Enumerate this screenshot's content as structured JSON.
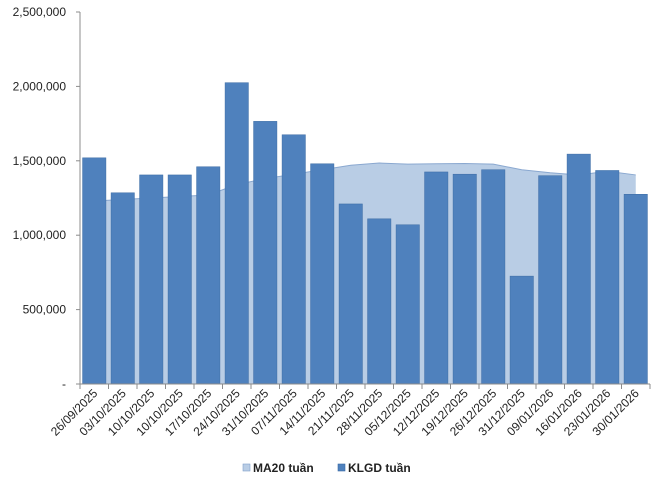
{
  "chart_data": {
    "type": "bar",
    "categories": [
      "26/09/2025",
      "03/10/2025",
      "10/10/2025",
      "10/10/2025",
      "17/10/2025",
      "24/10/2025",
      "31/10/2025",
      "07/11/2025",
      "14/11/2025",
      "21/11/2025",
      "28/11/2025",
      "05/12/2025",
      "12/12/2025",
      "19/12/2025",
      "26/12/2025",
      "31/12/2025",
      "09/01/2026",
      "16/01/2026",
      "23/01/2026",
      "30/01/2026"
    ],
    "series": [
      {
        "name": "KLGD tuần",
        "kind": "bar",
        "color": "#4f81bd",
        "values": [
          1520000,
          1285000,
          1405000,
          1405000,
          1460000,
          2025000,
          1765000,
          1675000,
          1480000,
          1210000,
          1110000,
          1070000,
          1425000,
          1410000,
          1440000,
          725000,
          1400000,
          1545000,
          1435000,
          1275000
        ]
      },
      {
        "name": "MA20 tuần",
        "kind": "area",
        "color": "#b9cde5",
        "values": [
          1230000,
          1240000,
          1250000,
          1260000,
          1270000,
          1340000,
          1380000,
          1410000,
          1440000,
          1470000,
          1485000,
          1478000,
          1480000,
          1482000,
          1478000,
          1440000,
          1420000,
          1405000,
          1430000,
          1405000
        ]
      }
    ],
    "yticks": [
      "-",
      "500,000",
      "1,000,000",
      "1,500,000",
      "2,000,000",
      "2,500,000"
    ],
    "ylim": [
      0,
      2500000
    ],
    "legend": {
      "position": "bottom",
      "items": [
        {
          "label": "MA20 tuần",
          "color": "#b9cde5"
        },
        {
          "label": "KLGD tuần",
          "color": "#4f81bd"
        }
      ]
    },
    "grid": false
  }
}
